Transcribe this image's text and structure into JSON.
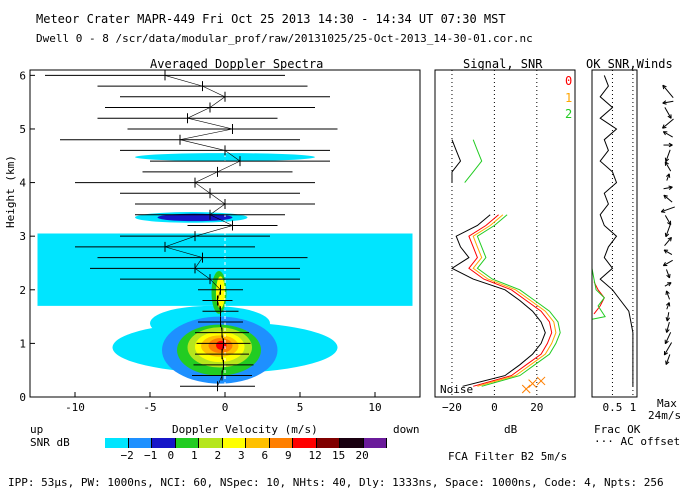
{
  "header": {
    "line1": "Meteor Crater  MAPR-449  Fri Oct 25 2013 14:30 - 14:34 UT 07:30 MST",
    "line2": "Dwell  0 -  8  /scr/data/modular_prof/raw/20131025/25-Oct-2013_14-30-01.cor.nc"
  },
  "panels": {
    "spectra_title": "Averaged Doppler Spectra",
    "snr_title": "Signal, SNR",
    "wind_title": "OK SNR,Winds",
    "ok_index": [
      "0",
      "1",
      "2"
    ],
    "ok_colors": [
      "#ff0000",
      "#ffa500",
      "#22cc22"
    ],
    "noise_label": "Noise",
    "frac_ok_label": "Frac OK",
    "ac_offset_label": "··· AC offset",
    "max_label": "Max",
    "max_value": "24m/s"
  },
  "legend": {
    "up_label": "up",
    "down_label": "down",
    "snr_db_label": "SNR dB",
    "bins": [
      "−2",
      "−1",
      "0",
      "1",
      "2",
      "3",
      "6",
      "9",
      "12",
      "15",
      "20"
    ],
    "colors": [
      "#00e5ff",
      "#1e90ff",
      "#1515c8",
      "#22cc22",
      "#b5e61d",
      "#ffff00",
      "#ffc000",
      "#ff7f00",
      "#ff0000",
      "#800000",
      "#1a0010",
      "#6a1b9a"
    ]
  },
  "filter_label": "FCA Filter B2  5m/s",
  "footer": "IPP: 53µs, PW: 1000ns, NCI: 60, NSpec: 10, NHts: 40, Dly: 1333ns, Space: 1000ns, Code: 4, Npts: 256",
  "chart_data": [
    {
      "type": "heatmap",
      "title": "Averaged Doppler Spectra",
      "xlabel": "Doppler Velocity (m/s)",
      "ylabel": "Height (km)",
      "xlim": [
        -13,
        13
      ],
      "ylim": [
        0,
        6.1
      ],
      "xticks": [
        -10,
        -5,
        0,
        5,
        10
      ],
      "yticks": [
        0,
        1,
        2,
        3,
        4,
        5,
        6
      ],
      "blobs": [
        {
          "v0": -12.5,
          "v1": 12.5,
          "h0": 1.7,
          "h1": 3.05,
          "level": 0
        },
        {
          "v0": -5.0,
          "v1": 3.0,
          "h0": 1.05,
          "h1": 1.7,
          "level": 0
        },
        {
          "v0": -7.5,
          "v1": 7.5,
          "h0": 0.45,
          "h1": 1.4,
          "level": 0
        },
        {
          "v0": -4.2,
          "v1": 3.5,
          "h0": 0.25,
          "h1": 1.5,
          "level": 1
        },
        {
          "v0": -3.2,
          "v1": 2.4,
          "h0": 0.4,
          "h1": 1.35,
          "level": 3
        },
        {
          "v0": -2.5,
          "v1": 1.8,
          "h0": 0.55,
          "h1": 1.3,
          "level": 4
        },
        {
          "v0": -2.0,
          "v1": 1.3,
          "h0": 0.65,
          "h1": 1.22,
          "level": 5
        },
        {
          "v0": -1.6,
          "v1": 0.9,
          "h0": 0.75,
          "h1": 1.15,
          "level": 6
        },
        {
          "v0": -1.1,
          "v1": 0.5,
          "h0": 0.82,
          "h1": 1.1,
          "level": 7
        },
        {
          "v0": -0.6,
          "v1": 0.1,
          "h0": 0.88,
          "h1": 1.05,
          "level": 8
        },
        {
          "v0": -0.9,
          "v1": 0.1,
          "h0": 1.55,
          "h1": 2.35,
          "level": 3
        },
        {
          "v0": -0.6,
          "v1": 0.0,
          "h0": 1.65,
          "h1": 2.25,
          "level": 5
        },
        {
          "v0": -6.0,
          "v1": 1.5,
          "h0": 3.25,
          "h1": 3.45,
          "level": 0
        },
        {
          "v0": -4.5,
          "v1": 0.5,
          "h0": 3.28,
          "h1": 3.42,
          "level": 2
        },
        {
          "v0": -6.0,
          "v1": 6.0,
          "h0": 4.4,
          "h1": 4.55,
          "level": 0
        }
      ],
      "profile": {
        "heights": [
          0.2,
          0.4,
          0.6,
          0.8,
          1.0,
          1.2,
          1.4,
          1.6,
          1.8,
          2.0,
          2.2,
          2.4,
          2.6,
          2.8,
          3.0,
          3.2,
          3.4,
          3.6,
          3.8,
          4.0,
          4.2,
          4.4,
          4.6,
          4.8,
          5.0,
          5.2,
          5.4,
          5.6,
          5.8,
          6.0
        ],
        "mean_velocity": [
          -0.5,
          -0.2,
          -0.1,
          -0.2,
          -0.1,
          -0.2,
          -0.3,
          -0.3,
          -0.5,
          -0.3,
          -1.0,
          -2.0,
          -1.5,
          -4.0,
          -2.0,
          0.5,
          -1.0,
          0.0,
          -1.0,
          -2.0,
          -0.5,
          1.0,
          0.0,
          -3.0,
          0.5,
          -2.5,
          -1.0,
          0.0,
          -1.5,
          -4.0
        ],
        "spread": [
          2.5,
          2.0,
          2.0,
          1.8,
          1.8,
          1.8,
          1.5,
          1.2,
          1.0,
          1.5,
          6.0,
          7.0,
          7.0,
          6.0,
          5.0,
          3.0,
          5.0,
          6.0,
          6.0,
          8.0,
          5.0,
          6.0,
          7.0,
          8.0,
          7.0,
          6.0,
          7.0,
          7.0,
          7.0,
          8.0
        ]
      }
    },
    {
      "type": "line",
      "title": "Signal, SNR",
      "xlabel": "dB",
      "xlim": [
        -28,
        38
      ],
      "xticks": [
        -20,
        0,
        20
      ],
      "xticklabels": [
        "−20",
        "0",
        "20"
      ],
      "ylim": [
        0,
        6.1
      ],
      "series": [
        {
          "name": "Noise",
          "x": [
            15,
            18,
            22
          ],
          "y": [
            0.15,
            0.25,
            0.3
          ]
        },
        {
          "name": "Signal (black)",
          "heights": [
            0.2,
            0.4,
            0.6,
            0.8,
            1.0,
            1.2,
            1.4,
            1.6,
            1.8,
            2.0,
            2.2,
            2.4,
            2.6,
            2.8,
            3.0,
            3.2,
            3.4,
            3.6,
            3.8,
            4.0,
            4.2,
            4.4,
            4.6,
            4.8
          ],
          "x": [
            -15,
            5,
            12,
            18,
            22,
            24,
            22,
            18,
            12,
            5,
            -10,
            -20,
            -12,
            -16,
            -18,
            -8,
            -2,
            null,
            null,
            -20,
            -20,
            -16,
            -18,
            -20
          ]
        },
        {
          "name": "SNR 0 (red)",
          "heights": [
            0.2,
            0.4,
            0.6,
            0.8,
            1.0,
            1.2,
            1.4,
            1.6,
            1.8,
            2.0,
            2.2,
            2.4,
            2.6,
            2.8,
            3.0,
            3.2,
            3.4
          ],
          "x": [
            -10,
            8,
            15,
            22,
            25,
            27,
            26,
            22,
            15,
            8,
            -5,
            -12,
            -8,
            -10,
            -12,
            -4,
            2
          ]
        },
        {
          "name": "SNR 1 (orange)",
          "heights": [
            0.2,
            0.4,
            0.6,
            0.8,
            1.0,
            1.2,
            1.4,
            1.6,
            1.8,
            2.0,
            2.2,
            2.4,
            2.6,
            2.8,
            3.0,
            3.2,
            3.4
          ],
          "x": [
            -8,
            10,
            17,
            24,
            27,
            29,
            28,
            24,
            17,
            10,
            -3,
            -10,
            -6,
            -8,
            -10,
            -2,
            4
          ]
        },
        {
          "name": "SNR 2 (green)",
          "heights": [
            0.2,
            0.4,
            0.6,
            0.8,
            1.0,
            1.2,
            1.4,
            1.6,
            1.8,
            2.0,
            2.2,
            2.4,
            2.6,
            2.8,
            3.0,
            3.2,
            3.4,
            3.6,
            3.8,
            4.0,
            4.2,
            4.4,
            4.6,
            4.8
          ],
          "x": [
            -6,
            12,
            19,
            26,
            29,
            31,
            30,
            26,
            19,
            12,
            -1,
            -8,
            -4,
            -6,
            -8,
            0,
            6,
            null,
            null,
            -14,
            -10,
            -6,
            -8,
            -10
          ]
        }
      ]
    },
    {
      "type": "line",
      "title": "OK SNR,Winds",
      "xlabel": "Frac OK",
      "xlim": [
        0,
        1.1
      ],
      "xticks": [
        0.5,
        1
      ],
      "xticklabels": [
        "0.5",
        "1"
      ],
      "ylim": [
        0,
        6.1
      ],
      "series": [
        {
          "name": "Frac OK (black)",
          "heights": [
            0.2,
            0.4,
            0.6,
            0.8,
            1.0,
            1.2,
            1.4,
            1.6,
            1.8,
            2.0,
            2.2,
            2.4,
            2.6,
            2.8,
            3.0,
            3.2,
            3.4,
            3.6,
            3.8,
            4.0,
            4.2,
            4.4,
            4.6,
            4.8,
            5.0,
            5.2,
            5.4,
            5.6,
            5.8,
            6.0
          ],
          "x": [
            1.0,
            1.0,
            1.0,
            1.0,
            1.0,
            1.0,
            0.95,
            0.9,
            0.7,
            0.5,
            0.2,
            0.5,
            0.3,
            0.4,
            0.6,
            0.3,
            0.2,
            0.4,
            0.3,
            0.6,
            0.5,
            0.2,
            0.4,
            0.3,
            0.6,
            0.2,
            0.5,
            0.2,
            0.4,
            0.3
          ]
        },
        {
          "name": "SNR 0 (red)",
          "heights": [
            1.55,
            1.7,
            1.85,
            2.0,
            2.15
          ],
          "x": [
            0.05,
            0.2,
            0.3,
            0.15,
            0.05
          ]
        },
        {
          "name": "SNR 2 (green)",
          "heights": [
            0.0,
            1.45,
            1.5,
            1.7,
            1.85,
            2.0,
            2.2,
            2.4,
            6.1
          ],
          "x": [
            0.0,
            0.0,
            0.32,
            0.15,
            0.3,
            0.1,
            0.05,
            0.0,
            0.0
          ]
        }
      ],
      "winds": {
        "heights": [
          0.7,
          0.9,
          1.1,
          1.3,
          1.5,
          1.7,
          1.9,
          2.1,
          2.3,
          2.5,
          2.7,
          2.9,
          3.1,
          3.3,
          3.5,
          3.7,
          3.9,
          4.1,
          4.3,
          4.5,
          4.7,
          4.9,
          5.1,
          5.3,
          5.5,
          5.7
        ],
        "dir_deg": [
          200,
          210,
          205,
          195,
          190,
          20,
          340,
          60,
          160,
          240,
          300,
          40,
          200,
          150,
          250,
          310,
          80,
          20,
          330,
          200,
          90,
          300,
          230,
          150,
          260,
          320
        ],
        "speed": [
          6,
          8,
          7,
          6,
          5,
          4,
          5,
          4,
          5,
          6,
          5,
          6,
          7,
          6,
          8,
          6,
          5,
          4,
          6,
          7,
          5,
          6,
          8,
          7,
          6,
          9
        ]
      }
    }
  ]
}
